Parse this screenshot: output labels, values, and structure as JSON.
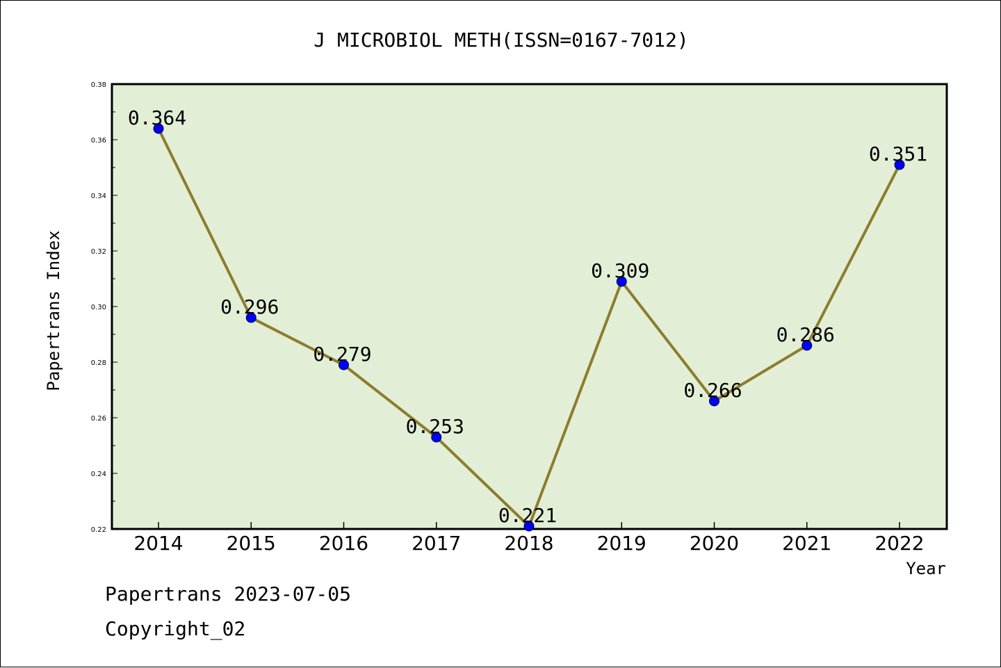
{
  "chart_data": {
    "type": "line",
    "title": "J MICROBIOL METH(ISSN=0167-7012)",
    "xlabel": "Year",
    "ylabel": "Papertrans Index",
    "categories": [
      "2014",
      "2015",
      "2016",
      "2017",
      "2018",
      "2019",
      "2020",
      "2021",
      "2022"
    ],
    "values": [
      0.364,
      0.296,
      0.279,
      0.253,
      0.221,
      0.309,
      0.266,
      0.286,
      0.351
    ],
    "value_labels": [
      "0.364",
      "0.296",
      "0.279",
      "0.253",
      "0.221",
      "0.309",
      "0.266",
      "0.286",
      "0.351"
    ],
    "yticks": [
      "0.22",
      "0.24",
      "0.26",
      "0.28",
      "0.30",
      "0.32",
      "0.34",
      "0.36",
      "0.38"
    ],
    "ylim": [
      0.22,
      0.38
    ],
    "grid": false,
    "colors": {
      "plot_background": "#e2efd6",
      "line": "#8b7d2e",
      "marker": "#0000ff"
    }
  },
  "footer": {
    "date_line": "Papertrans 2023-07-05",
    "copyright_line": "Copyright_02"
  }
}
